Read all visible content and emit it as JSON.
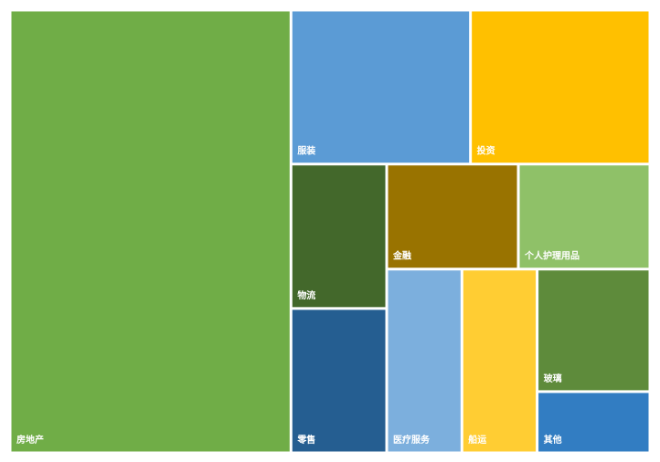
{
  "chart_data": {
    "type": "treemap",
    "categories": [
      "房地产",
      "服装",
      "投资",
      "物流",
      "零售",
      "金融",
      "个人护理用品",
      "医疗服务",
      "船运",
      "玻璃",
      "其他"
    ],
    "values": [
      18,
      4,
      4,
      2,
      2,
      2,
      2,
      2,
      2,
      2,
      1
    ],
    "colors": [
      "#70ad47",
      "#5b9bd5",
      "#ffc000",
      "#43682b",
      "#255e91",
      "#997300",
      "#8fc168",
      "#7cafdd",
      "#ffcd33",
      "#5e8b3b",
      "#327dc2"
    ]
  }
}
